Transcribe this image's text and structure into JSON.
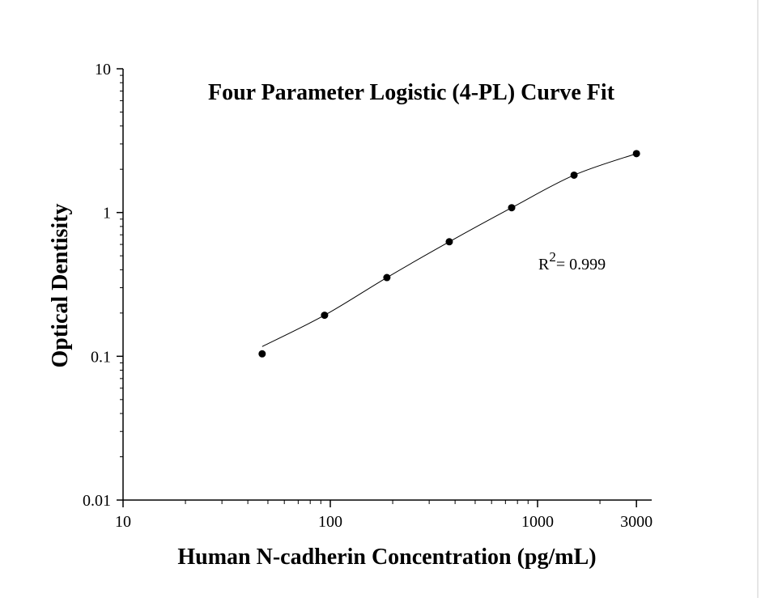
{
  "chart_data": {
    "type": "scatter",
    "title": "Four Parameter Logistic (4-PL) Curve Fit",
    "xlabel": "Human N-cadherin Concentration (pg/mL)",
    "ylabel": "Optical Dentisity",
    "x_scale": "log",
    "y_scale": "log",
    "xlim": [
      10,
      3500
    ],
    "ylim": [
      0.01,
      10
    ],
    "x_ticks": [
      {
        "value": 10,
        "label": "10"
      },
      {
        "value": 100,
        "label": "100"
      },
      {
        "value": 1000,
        "label": "1000"
      },
      {
        "value": 3000,
        "label": "3000"
      }
    ],
    "y_ticks": [
      {
        "value": 0.01,
        "label": "0.01"
      },
      {
        "value": 0.1,
        "label": "0.1"
      },
      {
        "value": 1,
        "label": "1"
      },
      {
        "value": 10,
        "label": "10"
      }
    ],
    "grid": false,
    "series": [
      {
        "points": [
          {
            "x": 46.9,
            "y": 0.104
          },
          {
            "x": 93.8,
            "y": 0.193
          },
          {
            "x": 187.5,
            "y": 0.353
          },
          {
            "x": 375,
            "y": 0.626
          },
          {
            "x": 750,
            "y": 1.08
          },
          {
            "x": 1500,
            "y": 1.82
          },
          {
            "x": 3000,
            "y": 2.57
          }
        ],
        "color": "#000000"
      }
    ],
    "fit": {
      "model": "4PL",
      "x_range": [
        46.9,
        3000
      ],
      "color": "#000000"
    },
    "annotation": {
      "base": "R",
      "superscript": "2",
      "text": "= 0.999"
    }
  }
}
